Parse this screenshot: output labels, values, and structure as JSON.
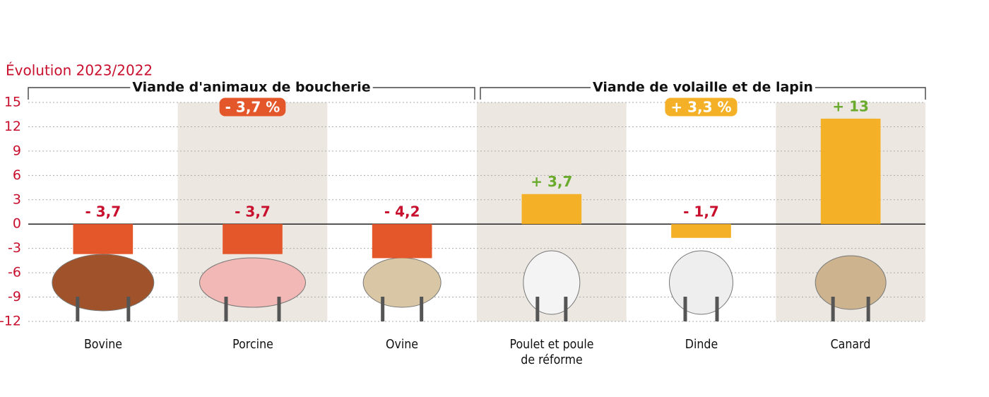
{
  "chart_data": {
    "type": "bar",
    "axis_label": "Évolution 2023/2022",
    "categories": [
      "Bovine",
      "Porcine",
      "Ovine",
      "Poulet et poule\nde réforme",
      "Dinde",
      "Canard"
    ],
    "values": [
      -3.7,
      -3.7,
      -4.2,
      3.7,
      -1.7,
      13
    ],
    "value_labels": [
      "- 3,7",
      "- 3,7",
      "- 4,2",
      "+ 3,7",
      "- 1,7",
      "+ 13"
    ],
    "colors": [
      "#e4572a",
      "#e4572a",
      "#e4572a",
      "#f4b027",
      "#f4b027",
      "#f4b027"
    ],
    "groups": [
      {
        "label": "Viande d'animaux de boucherie",
        "summary": "- 3,7 %",
        "color": "#e4572a",
        "size": 3
      },
      {
        "label": "Viande de volaille et de lapin",
        "summary": "+ 3,3 %",
        "color": "#f4b027",
        "size": 3
      }
    ],
    "ylim": [
      -12,
      15
    ],
    "yticks": [
      -12,
      -9,
      -6,
      -3,
      0,
      3,
      6,
      9,
      12,
      15
    ],
    "grid": true
  }
}
